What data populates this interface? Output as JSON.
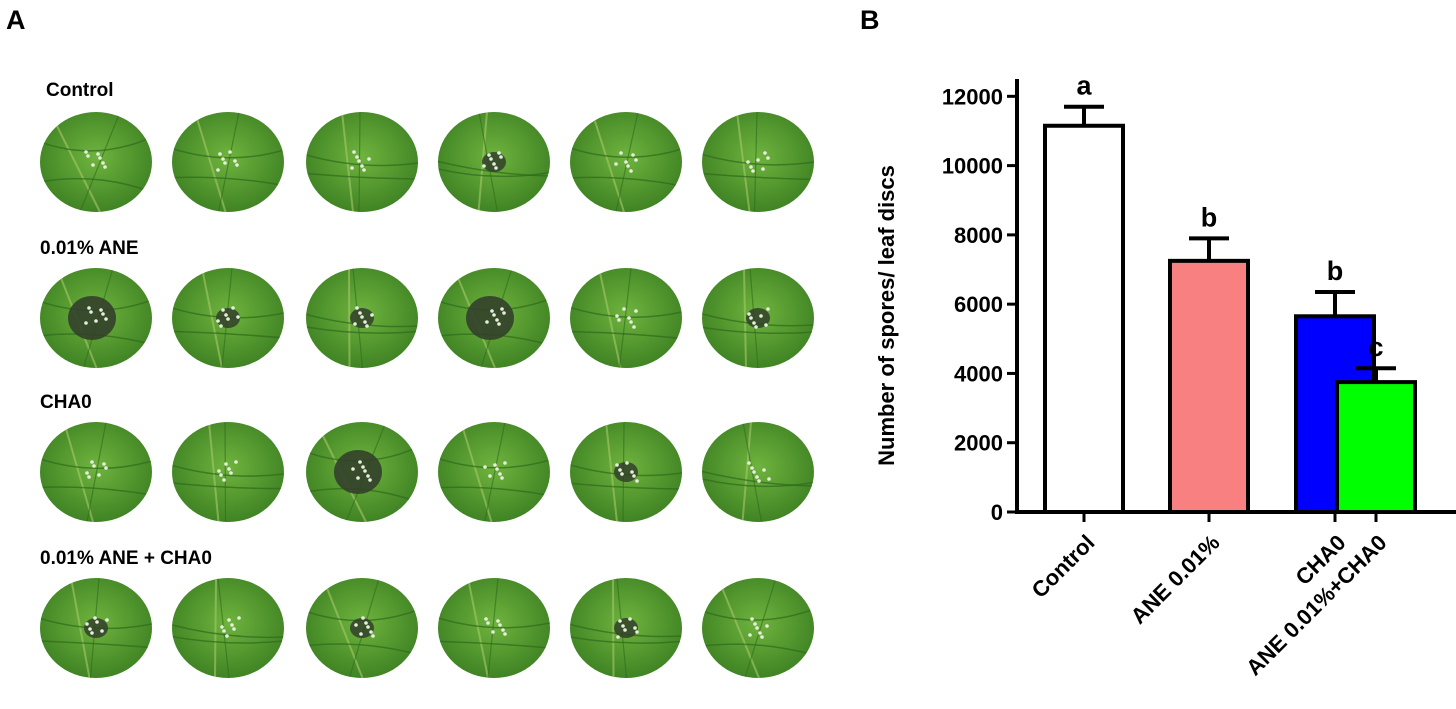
{
  "panel_labels": {
    "a": "A",
    "b": "B"
  },
  "panel_a": {
    "rows": [
      {
        "label": "Control",
        "leaf_count": 6
      },
      {
        "label": "0.01% ANE",
        "leaf_count": 6
      },
      {
        "label": "CHA0",
        "leaf_count": 6
      },
      {
        "label": "0.01% ANE + CHA0",
        "leaf_count": 6
      }
    ],
    "colors": {
      "leaf": "#4f9a2c",
      "leaf_dark": "#3c7f22",
      "vein": "#2f6a1c",
      "lesion": "#33402a",
      "spore": "#e6eedc"
    }
  },
  "chart_data": {
    "type": "bar",
    "categories": [
      "Control",
      "ANE 0.01%",
      "CHA0",
      "ANE 0.01%+CHA0"
    ],
    "values": [
      11150,
      7250,
      5650,
      3750
    ],
    "errors": [
      550,
      650,
      700,
      400
    ],
    "letters": [
      "a",
      "b",
      "b",
      "c"
    ],
    "colors": [
      "#ffffff",
      "#f98080",
      "#0000ff",
      "#00ff00"
    ],
    "ylabel": "Number of spores/ leaf discs",
    "ylim": [
      0,
      12500
    ],
    "yticks": [
      "0",
      "2000",
      "4000",
      "6000",
      "8000",
      "10000",
      "12000"
    ],
    "ytick_values": [
      0,
      2000,
      4000,
      6000,
      8000,
      10000,
      12000
    ]
  }
}
